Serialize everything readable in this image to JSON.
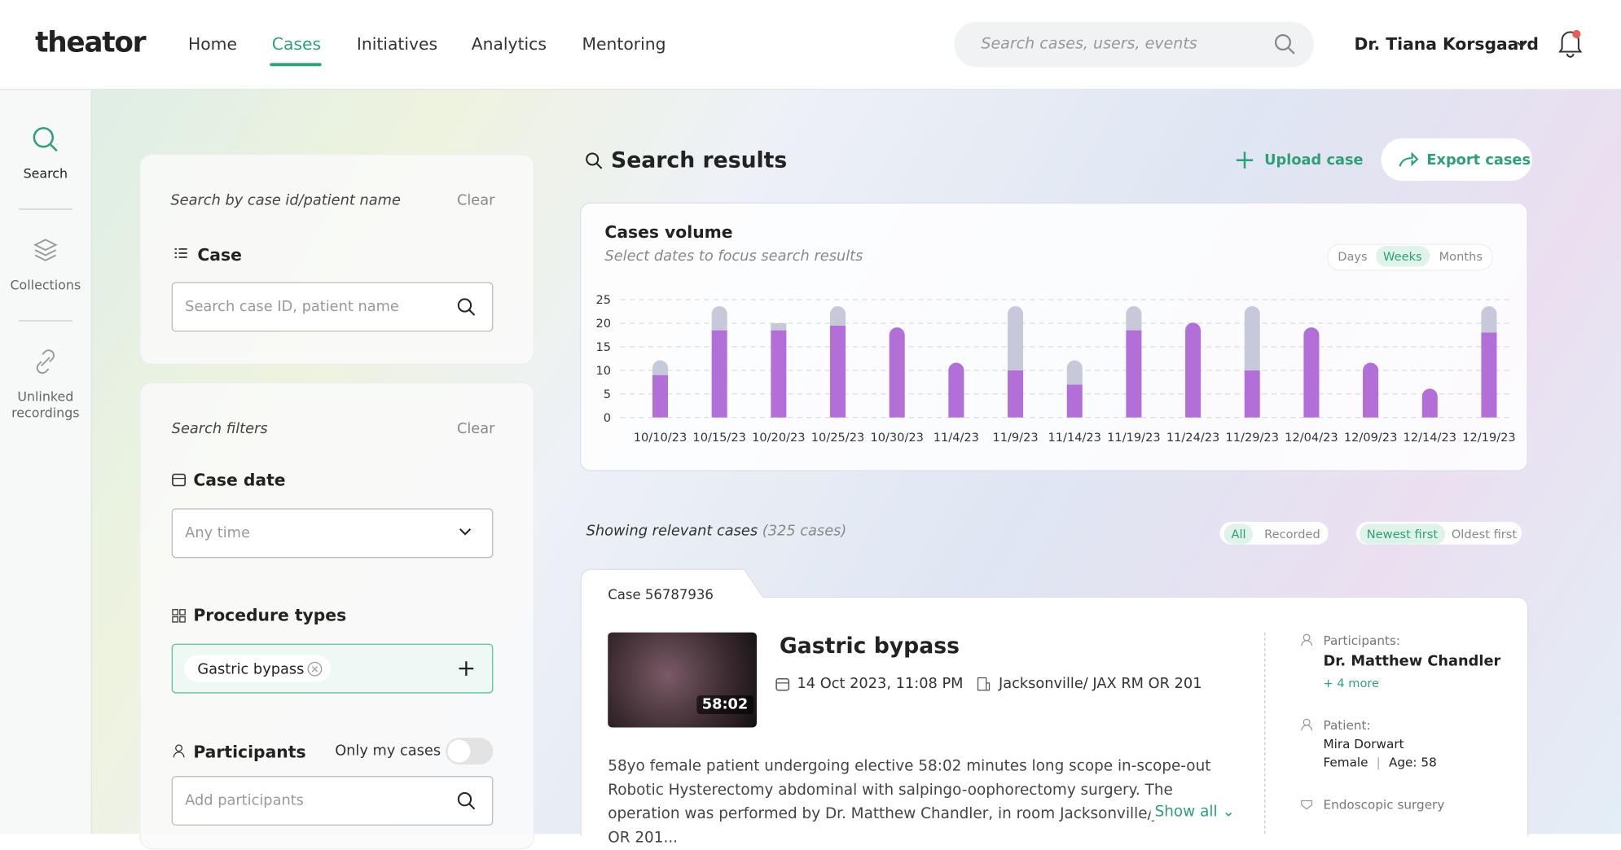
{
  "nav": {
    "logo": "theator",
    "items": [
      "Home",
      "Cases",
      "Initiatives",
      "Analytics",
      "Mentoring"
    ],
    "search_placeholder": "Search cases, users, events",
    "user": "Dr. Tiana Korsgaard"
  },
  "sidebar": [
    "Search",
    "Collections",
    "Unlinked recordings"
  ],
  "case_search": {
    "label": "Search by case id/patient name",
    "clear": "Clear",
    "heading": "Case",
    "placeholder": "Search case ID, patient name"
  },
  "filters": {
    "label": "Search filters",
    "clear": "Clear",
    "case_date": "Case date",
    "date_value": "Any time",
    "procedure_types": "Procedure types",
    "procedure_tag": "Gastric bypass",
    "participants": "Participants",
    "only_my_cases": "Only my cases",
    "participants_placeholder": "Add participants"
  },
  "results": {
    "title": "Search results",
    "upload": "Upload case",
    "export": "Export cases",
    "showing": "Showing relevant cases",
    "count": "(325 cases)",
    "view_filters": [
      "All",
      "Recorded"
    ],
    "sort": [
      "Newest first",
      "Oldest first"
    ]
  },
  "chart_data": {
    "type": "bar",
    "stacked": true,
    "title": "Cases volume",
    "subtitle": "Select dates to focus search results",
    "periods": [
      "Days",
      "Weeks",
      "Months"
    ],
    "categories": [
      "10/10/23",
      "10/15/23",
      "10/20/23",
      "10/25/23",
      "10/30/23",
      "11/4/23",
      "11/9/23",
      "11/14/23",
      "11/19/23",
      "11/24/23",
      "11/29/23",
      "12/04/23",
      "12/09/23",
      "12/14/23",
      "12/19/23"
    ],
    "series": [
      {
        "color": "#b36fd8",
        "values": [
          9,
          18.5,
          18.5,
          19.5,
          19,
          11.5,
          10,
          7,
          18.5,
          20,
          10,
          19,
          11.5,
          6,
          18
        ]
      },
      {
        "color": "#c7c9da",
        "values": [
          3,
          5,
          1.5,
          4,
          0,
          0,
          13.5,
          5,
          5,
          0,
          13.5,
          0,
          0,
          0,
          5.5
        ]
      }
    ],
    "ylim": [
      0,
      25
    ],
    "yticks": [
      0,
      5,
      10,
      15,
      20,
      25
    ],
    "grid": true
  },
  "case": {
    "id": "Case 56787936",
    "title": "Gastric bypass",
    "duration": "58:02",
    "date": "14 Oct 2023, 11:08 PM",
    "location": "Jacksonville/ JAX RM OR 201",
    "description": "58yo female patient undergoing elective 58:02 minutes long scope in-scope-out Robotic Hysterectomy abdominal with salpingo-oophorectomy surgery. The operation was performed by Dr. Matthew Chandler, in room Jacksonville/JAX RM OR 201...",
    "show_all": "Show all",
    "participants_label": "Participants:",
    "participant": "Dr. Matthew Chandler",
    "more": "+ 4 more",
    "patient_label": "Patient:",
    "patient_name": "Mira Dorwart",
    "sex": "Female",
    "age": "Age: 58",
    "type": "Endoscopic surgery"
  }
}
